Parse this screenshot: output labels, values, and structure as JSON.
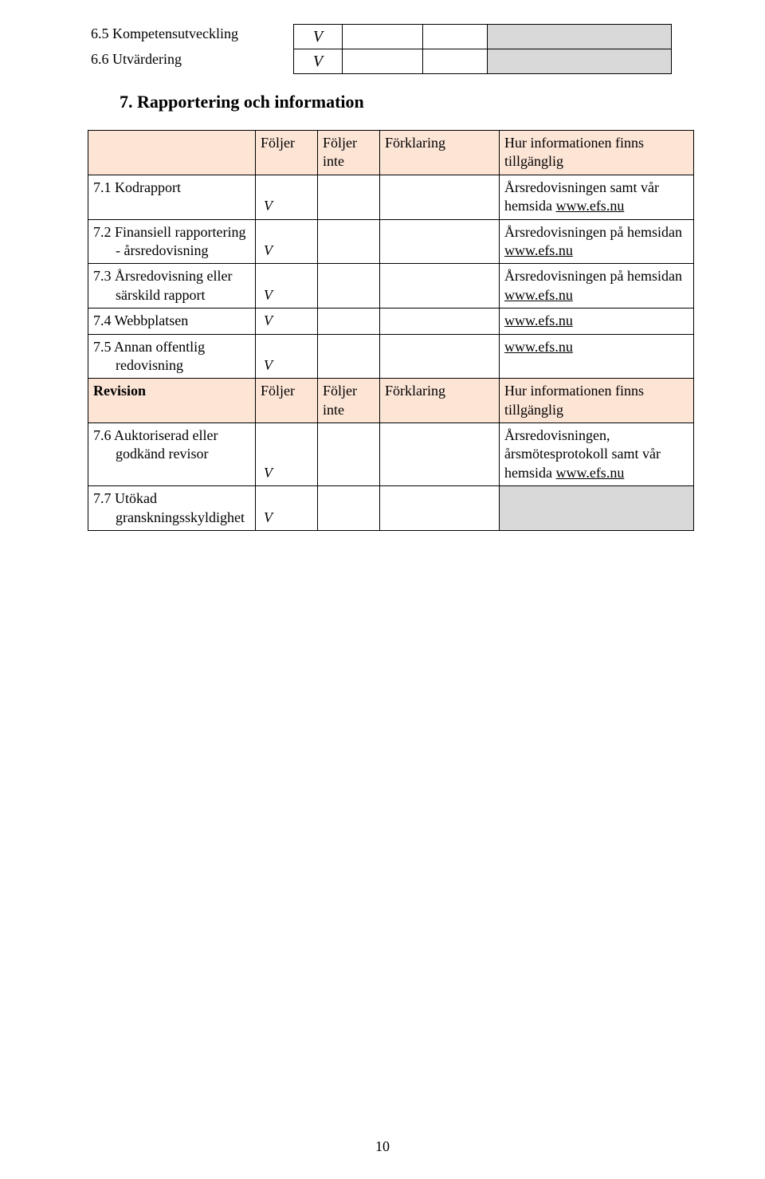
{
  "top": {
    "row65": {
      "label": "6.5 Kompetensutveckling",
      "mark": "V"
    },
    "row66": {
      "label": "6.6 Utvärdering",
      "mark": "V"
    }
  },
  "heading": "7. Rapportering och information",
  "table": {
    "header": {
      "c1": "",
      "c2": "Följer",
      "c3": "Följer inte",
      "c4": "Förklaring",
      "c5": "Hur informationen finns tillgänglig"
    },
    "rows": [
      {
        "label": "7.1 Kodrapport",
        "mark": "V",
        "info_pre": "Årsredovisningen samt vår hemsida ",
        "info_link": "www.efs.nu",
        "info_post": ""
      },
      {
        "label": "7.2 Finansiell rapportering - årsredovisning",
        "mark": "V",
        "info_pre": "Årsredovisningen på hemsidan ",
        "info_link": "www.efs.nu",
        "info_post": ""
      },
      {
        "label": "7.3 Årsredovisning eller särskild rapport",
        "mark": "V",
        "info_pre": "Årsredovisningen på hemsidan ",
        "info_link": "www.efs.nu",
        "info_post": ""
      },
      {
        "label": "7.4 Webbplatsen",
        "mark": "V",
        "info_pre": "",
        "info_link": "www.efs.nu",
        "info_post": ""
      },
      {
        "label": "7.5 Annan offentlig redovisning",
        "mark": "V",
        "info_pre": "",
        "info_link": "www.efs.nu",
        "info_post": ""
      }
    ],
    "revision_header": {
      "c1": "Revision",
      "c2": "Följer",
      "c3": "Följer inte",
      "c4": "Förklaring",
      "c5": "Hur informationen finns tillgänglig"
    },
    "revision_rows": [
      {
        "label": "7.6 Auktoriserad eller godkänd revisor",
        "mark": "V",
        "info_pre": "Årsredovisningen, årsmötesprotokoll samt vår hemsida ",
        "info_link": "www.efs.nu",
        "info_post": ""
      },
      {
        "label": "7.7 Utökad granskningsskyldighet",
        "mark": "V",
        "grey": true
      }
    ]
  },
  "page_number": "10"
}
